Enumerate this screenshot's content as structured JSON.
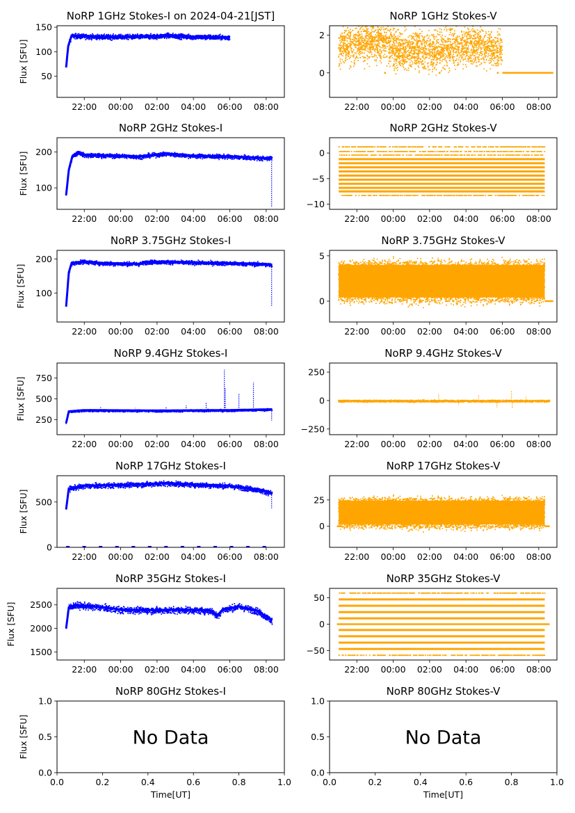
{
  "figure": {
    "xtick_labels": [
      "22:00",
      "00:00",
      "02:00",
      "04:00",
      "06:00",
      "08:00"
    ],
    "ylabel": "Flux [SFU]",
    "xlabel_bottom": "Time[UT]",
    "nodata_text": "No Data",
    "nodata_xticks": [
      "0.0",
      "0.2",
      "0.4",
      "0.6",
      "0.8",
      "1.0"
    ],
    "nodata_yticks": [
      "0.0",
      "0.5",
      "1.0"
    ],
    "stokes_i_color": "#0000ff",
    "stokes_v_color": "#ffa500"
  },
  "chart_data": [
    {
      "type": "line",
      "title": "NoRP 1GHz Stokes-I on 2024-04-21[JST]",
      "ylabel": "Flux [SFU]",
      "ylim": [
        7,
        153
      ],
      "yticks": [
        50,
        100,
        150
      ],
      "color": "#0000ff",
      "kind": "I",
      "start_hour": 21.0,
      "end_hour": 30.0,
      "base": [
        [
          21.0,
          68
        ],
        [
          21.12,
          112
        ],
        [
          21.3,
          133
        ],
        [
          23.0,
          131
        ],
        [
          24.0,
          131
        ],
        [
          26.0,
          132
        ],
        [
          26.5,
          134
        ],
        [
          28.0,
          131
        ],
        [
          30.0,
          130
        ]
      ],
      "noise": 2.5,
      "spikes": []
    },
    {
      "type": "scatter",
      "title": "NoRP 1GHz Stokes-V",
      "ylabel": "",
      "ylim": [
        -1.3,
        2.5
      ],
      "yticks": [
        0,
        2
      ],
      "color": "#ffa500",
      "kind": "V",
      "start_hour": 21.0,
      "end_hour": 30.0,
      "base": [
        [
          21.0,
          1.4
        ],
        [
          23.5,
          1.8
        ],
        [
          24.0,
          1.3
        ],
        [
          26.0,
          1.2
        ],
        [
          28.5,
          1.5
        ],
        [
          30.0,
          1.2
        ]
      ],
      "noise": 0.5,
      "extra": [
        {
          "x": [
            30.0,
            32.8
          ],
          "y": 0,
          "kind": "segment"
        },
        {
          "x": [
            23.5,
            23.6
          ],
          "y": 0,
          "kind": "segment"
        },
        {
          "x": [
            26.5,
            26.6
          ],
          "y": 0,
          "kind": "segment"
        },
        {
          "x": [
            29.7,
            29.8
          ],
          "y": 0,
          "kind": "segment"
        }
      ]
    },
    {
      "type": "line",
      "title": "NoRP 2GHz Stokes-I",
      "ylabel": "Flux [SFU]",
      "ylim": [
        40,
        240
      ],
      "yticks": [
        100,
        200
      ],
      "color": "#0000ff",
      "kind": "I",
      "start_hour": 21.0,
      "end_hour": 32.33,
      "base": [
        [
          21.0,
          80
        ],
        [
          21.15,
          150
        ],
        [
          21.35,
          190
        ],
        [
          21.7,
          200
        ],
        [
          22.0,
          192
        ],
        [
          24.0,
          190
        ],
        [
          25.0,
          188
        ],
        [
          26.5,
          196
        ],
        [
          28.0,
          190
        ],
        [
          30.0,
          188
        ],
        [
          32.0,
          183
        ],
        [
          32.33,
          185
        ]
      ],
      "noise": 3,
      "spikes": [
        {
          "x": 32.3,
          "y": 45
        }
      ]
    },
    {
      "type": "scatter",
      "title": "NoRP 2GHz Stokes-V",
      "ylabel": "",
      "ylim": [
        -11,
        3
      ],
      "yticks": [
        -10,
        -5,
        0
      ],
      "color": "#ffa500",
      "kind": "bands",
      "start_hour": 21.0,
      "end_hour": 32.33,
      "bands": [
        1.2,
        0.3,
        -0.4,
        -1.2,
        -2.0,
        -2.8,
        -3.6,
        -4.4,
        -5.2,
        -6.0,
        -6.8,
        -7.5,
        -8.3
      ],
      "heavy": [
        -1.2,
        -2.0,
        -2.8,
        -3.6,
        -4.4,
        -5.2,
        -6.0,
        -6.8,
        -7.5
      ]
    },
    {
      "type": "line",
      "title": "NoRP 3.75GHz Stokes-I",
      "ylabel": "Flux [SFU]",
      "ylim": [
        15,
        225
      ],
      "yticks": [
        100,
        200
      ],
      "color": "#0000ff",
      "kind": "I",
      "start_hour": 21.0,
      "end_hour": 32.33,
      "base": [
        [
          21.0,
          60
        ],
        [
          21.15,
          160
        ],
        [
          21.3,
          188
        ],
        [
          22.0,
          193
        ],
        [
          23.0,
          188
        ],
        [
          25.0,
          186
        ],
        [
          25.5,
          192
        ],
        [
          26.5,
          192
        ],
        [
          28.0,
          190
        ],
        [
          30.0,
          188
        ],
        [
          32.0,
          185
        ],
        [
          32.33,
          182
        ]
      ],
      "noise": 3,
      "spikes": [
        {
          "x": 32.3,
          "y": 60
        }
      ]
    },
    {
      "type": "scatter",
      "title": "NoRP 3.75GHz Stokes-V",
      "ylabel": "",
      "ylim": [
        -2.3,
        5.6
      ],
      "yticks": [
        0,
        5
      ],
      "color": "#ffa500",
      "kind": "dense",
      "start_hour": 21.0,
      "end_hour": 32.33,
      "center": 2.2,
      "spread": 2.4,
      "extra": [
        {
          "x": [
            32.33,
            32.8
          ],
          "y": 0,
          "kind": "segment"
        }
      ]
    },
    {
      "type": "line",
      "title": "NoRP 9.4GHz Stokes-I",
      "ylabel": "Flux [SFU]",
      "ylim": [
        70,
        930
      ],
      "yticks": [
        250,
        500,
        750
      ],
      "color": "#0000ff",
      "kind": "I",
      "start_hour": 21.0,
      "end_hour": 32.33,
      "base": [
        [
          21.0,
          210
        ],
        [
          21.15,
          350
        ],
        [
          22.0,
          365
        ],
        [
          26.0,
          360
        ],
        [
          30.0,
          365
        ],
        [
          32.33,
          375
        ]
      ],
      "noise": 6,
      "spikes": [
        {
          "x": 22.9,
          "y": 400
        },
        {
          "x": 24.8,
          "y": 390
        },
        {
          "x": 26.5,
          "y": 410
        },
        {
          "x": 27.6,
          "y": 420
        },
        {
          "x": 28.7,
          "y": 460
        },
        {
          "x": 29.7,
          "y": 850
        },
        {
          "x": 29.75,
          "y": 640
        },
        {
          "x": 30.5,
          "y": 570
        },
        {
          "x": 31.3,
          "y": 700
        },
        {
          "x": 32.3,
          "y": 240
        }
      ]
    },
    {
      "type": "scatter",
      "title": "NoRP 9.4GHz Stokes-V",
      "ylabel": "",
      "ylim": [
        -300,
        330
      ],
      "yticks": [
        -250,
        0,
        250
      ],
      "color": "#ffa500",
      "kind": "V",
      "start_hour": 21.0,
      "end_hour": 32.6,
      "base": [
        [
          21.0,
          0
        ],
        [
          32.6,
          0
        ]
      ],
      "noise": 4,
      "spikes": [
        {
          "x": 26.5,
          "y": 60
        },
        {
          "x": 27.6,
          "y": -40
        },
        {
          "x": 28.7,
          "y": 50
        },
        {
          "x": 29.7,
          "y": -60
        },
        {
          "x": 30.5,
          "y": 90
        },
        {
          "x": 30.55,
          "y": -70
        },
        {
          "x": 31.3,
          "y": 40
        }
      ]
    },
    {
      "type": "line",
      "title": "NoRP 17GHz Stokes-I",
      "ylabel": "Flux [SFU]",
      "ylim": [
        0,
        790
      ],
      "yticks": [
        0,
        500
      ],
      "color": "#0000ff",
      "kind": "I",
      "start_hour": 21.0,
      "end_hour": 32.33,
      "base": [
        [
          21.0,
          420
        ],
        [
          21.15,
          650
        ],
        [
          22.0,
          680
        ],
        [
          24.0,
          690
        ],
        [
          25.5,
          700
        ],
        [
          26.5,
          710
        ],
        [
          28.0,
          695
        ],
        [
          30.0,
          680
        ],
        [
          31.5,
          640
        ],
        [
          32.33,
          600
        ]
      ],
      "noise": 14,
      "spikes": [
        {
          "x": 32.3,
          "y": 430
        }
      ],
      "extra": [
        {
          "x": [
            21.0,
            32.6
          ],
          "y": 5,
          "kind": "ticks"
        }
      ]
    },
    {
      "type": "scatter",
      "title": "NoRP 17GHz Stokes-V",
      "ylabel": "",
      "ylim": [
        -20,
        48
      ],
      "yticks": [
        0,
        25
      ],
      "color": "#ffa500",
      "kind": "dense",
      "start_hour": 21.0,
      "end_hour": 32.33,
      "center": 13,
      "spread": 15,
      "extra": [
        {
          "x": [
            20.9,
            21.15
          ],
          "y": 0,
          "kind": "segment"
        },
        {
          "x": [
            32.33,
            32.6
          ],
          "y": 0,
          "kind": "segment"
        }
      ]
    },
    {
      "type": "line",
      "title": "NoRP 35GHz Stokes-I",
      "ylabel": "Flux [SFU]",
      "ylim": [
        1330,
        2850
      ],
      "yticks": [
        1500,
        2000,
        2500
      ],
      "color": "#0000ff",
      "kind": "I",
      "start_hour": 21.0,
      "end_hour": 32.33,
      "base": [
        [
          21.0,
          2000
        ],
        [
          21.15,
          2450
        ],
        [
          21.5,
          2500
        ],
        [
          23.0,
          2450
        ],
        [
          24.0,
          2400
        ],
        [
          26.0,
          2390
        ],
        [
          27.5,
          2400
        ],
        [
          29.0,
          2380
        ],
        [
          29.3,
          2270
        ],
        [
          29.6,
          2400
        ],
        [
          30.5,
          2470
        ],
        [
          31.5,
          2380
        ],
        [
          32.33,
          2170
        ]
      ],
      "noise": 35,
      "spikes": []
    },
    {
      "type": "scatter",
      "title": "NoRP 35GHz Stokes-V",
      "ylabel": "",
      "ylim": [
        -68,
        68
      ],
      "yticks": [
        -50,
        0,
        50
      ],
      "color": "#ffa500",
      "kind": "bands",
      "start_hour": 21.0,
      "end_hour": 32.33,
      "bands": [
        59,
        47,
        35,
        23,
        11,
        0,
        -11,
        -23,
        -35,
        -47,
        -59
      ],
      "heavy": [
        47,
        35,
        23,
        11,
        -11,
        -23,
        -35,
        -47
      ],
      "extra": [
        {
          "x": [
            20.9,
            32.6
          ],
          "y": 0,
          "kind": "segment"
        }
      ]
    },
    {
      "type": "empty",
      "title": "NoRP 80GHz Stokes-I",
      "ylabel": "Flux [SFU]",
      "xlabel": "Time[UT]",
      "xlim": [
        0,
        1
      ],
      "ylim": [
        0,
        1
      ]
    },
    {
      "type": "empty",
      "title": "NoRP 80GHz Stokes-V",
      "ylabel": "",
      "xlabel": "Time[UT]",
      "xlim": [
        0,
        1
      ],
      "ylim": [
        0,
        1
      ]
    }
  ]
}
